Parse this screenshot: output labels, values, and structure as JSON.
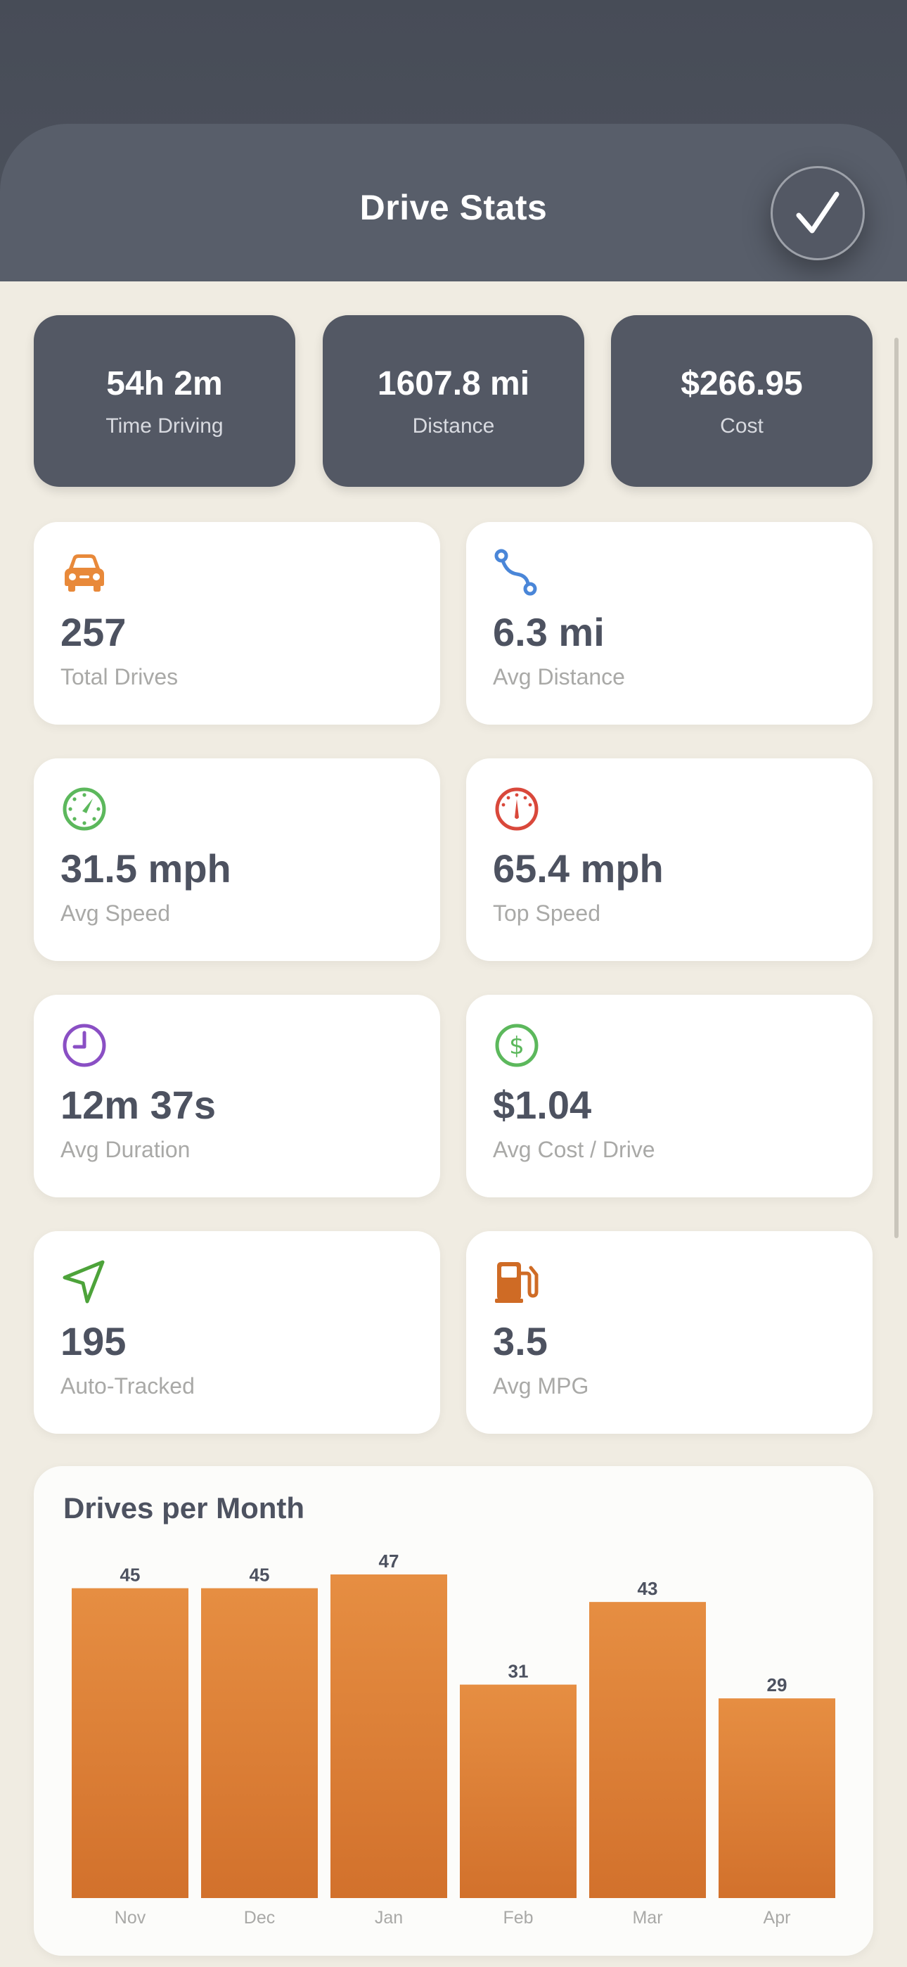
{
  "header": {
    "title": "Drive Stats",
    "confirm_icon": "checkmark-icon"
  },
  "summary": [
    {
      "value": "54h 2m",
      "label": "Time Driving"
    },
    {
      "value": "1607.8 mi",
      "label": "Distance"
    },
    {
      "value": "$266.95",
      "label": "Cost"
    }
  ],
  "stats": [
    {
      "icon": "car-icon",
      "color": "#e8893a",
      "value": "257",
      "label": "Total Drives"
    },
    {
      "icon": "route-icon",
      "color": "#4a86d8",
      "value": "6.3 mi",
      "label": "Avg Distance"
    },
    {
      "icon": "speedometer-icon",
      "color": "#5cb85c",
      "value": "31.5 mph",
      "label": "Avg Speed"
    },
    {
      "icon": "gauge-icon",
      "color": "#d9483b",
      "value": "65.4 mph",
      "label": "Top Speed"
    },
    {
      "icon": "clock-icon",
      "color": "#8a4fc4",
      "value": "12m 37s",
      "label": "Avg Duration"
    },
    {
      "icon": "dollar-icon",
      "color": "#5cb85c",
      "value": "$1.04",
      "label": "Avg Cost / Drive"
    },
    {
      "icon": "navigation-arrow-icon",
      "color": "#4da33a",
      "value": "195",
      "label": "Auto-Tracked"
    },
    {
      "icon": "fuel-pump-icon",
      "color": "#cf6b25",
      "value": "3.5",
      "label": "Avg MPG"
    }
  ],
  "chart_data": {
    "type": "bar",
    "title": "Drives per Month",
    "categories": [
      "Nov",
      "Dec",
      "Jan",
      "Feb",
      "Mar",
      "Apr"
    ],
    "values": [
      45,
      45,
      47,
      31,
      43,
      29
    ],
    "bar_color_top": "#e68e42",
    "bar_color_bottom": "#d2712c",
    "ylim": [
      0,
      47
    ]
  }
}
